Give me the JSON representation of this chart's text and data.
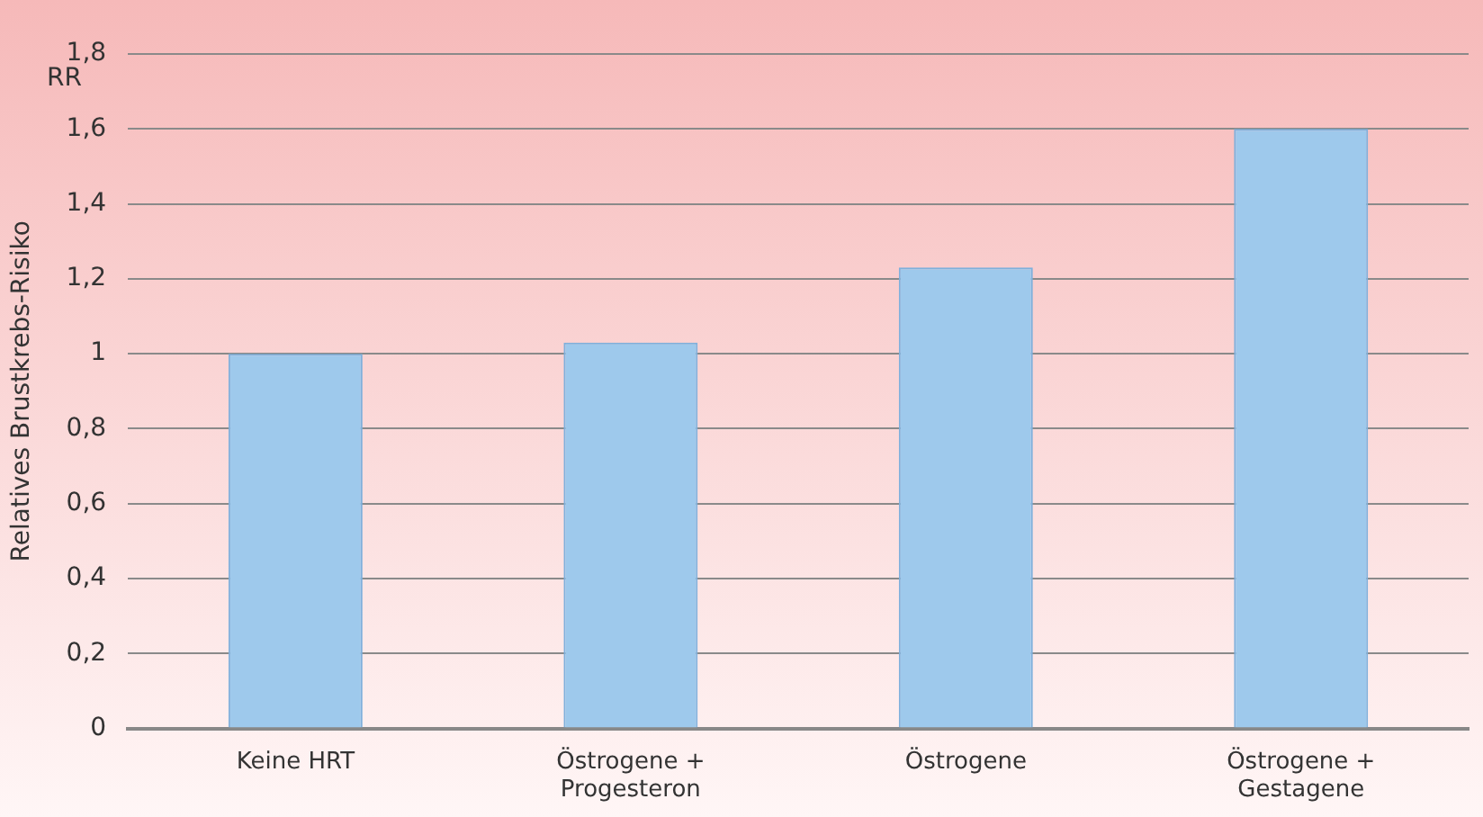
{
  "chart_data": {
    "type": "bar",
    "ylabel": "Relatives Brustkrebs-Risiko",
    "categories": [
      "Keine HRT",
      "Östrogene + Progesteron",
      "Östrogene",
      "Östrogene + Gestagene"
    ],
    "values": [
      1.0,
      1.03,
      1.23,
      1.6
    ],
    "color": "#9ec9ec",
    "ylim": [
      0,
      1.8
    ],
    "yticks": [
      {
        "value": 0,
        "label": "0"
      },
      {
        "value": 0.2,
        "label": "0,2"
      },
      {
        "value": 0.4,
        "label": "0,4"
      },
      {
        "value": 0.6,
        "label": "0,6"
      },
      {
        "value": 0.8,
        "label": "0,8"
      },
      {
        "value": 1,
        "label": "1"
      },
      {
        "value": 1.2,
        "label": "1,2"
      },
      {
        "value": 1.4,
        "label": "1,4"
      },
      {
        "value": 1.6,
        "label": "1,6"
      },
      {
        "value": 1.8,
        "label": "1,8"
      }
    ],
    "grid": "y",
    "legend": false,
    "annotations": [
      "RR"
    ]
  }
}
